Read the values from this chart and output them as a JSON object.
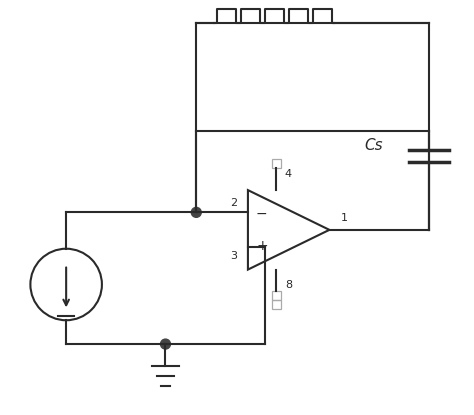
{
  "bg_color": "#ffffff",
  "line_color": "#2a2a2a",
  "line_width": 1.5,
  "fig_width": 4.74,
  "fig_height": 4.15,
  "dpi": 100,
  "cs_label": "Cs",
  "dot_color": "#444444",
  "sq_color": "#aaaaaa"
}
